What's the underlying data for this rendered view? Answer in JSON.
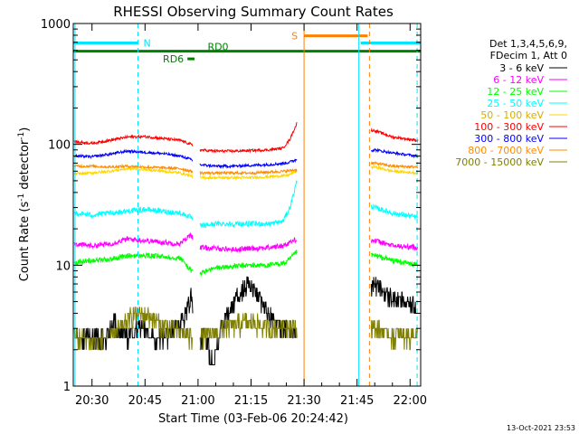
{
  "chart_data": {
    "type": "line",
    "title": "RHESSI Observing Summary Count Rates",
    "xlabel": "Start Time (03-Feb-06 20:24:42)",
    "ylabel": "Count Rate (s",
    "ylabel_sup": "-1",
    "ylabel_mid": " detector",
    "ylabel_sup2": "-1",
    "ylabel_end": ")",
    "x_unit": "minutes of day",
    "xlim": [
      1224.7,
      1323
    ],
    "ylim": [
      1,
      1000
    ],
    "y_scale": "log",
    "x_ticks": [
      {
        "value": 1230,
        "label": "20:30"
      },
      {
        "value": 1245,
        "label": "20:45"
      },
      {
        "value": 1260,
        "label": "21:00"
      },
      {
        "value": 1275,
        "label": "21:15"
      },
      {
        "value": 1290,
        "label": "21:30"
      },
      {
        "value": 1305,
        "label": "21:45"
      },
      {
        "value": 1320,
        "label": "22:00"
      }
    ],
    "y_ticks": [
      {
        "value": 1,
        "label": "1"
      },
      {
        "value": 10,
        "label": "10"
      },
      {
        "value": 100,
        "label": "100"
      },
      {
        "value": 1000,
        "label": "1000"
      }
    ],
    "legend_header": [
      "Det 1,3,4,5,6,9,",
      "FDecim 1, Att 0"
    ],
    "legend_position": "right",
    "gaps": [
      [
        1258.5,
        1260.5
      ],
      [
        1288,
        1309
      ]
    ],
    "series": [
      {
        "name": "3 - 6 keV",
        "color": "#000000",
        "points": [
          [
            1225,
            2.5
          ],
          [
            1234,
            2.5
          ],
          [
            1236,
            3.4
          ],
          [
            1240,
            2.6
          ],
          [
            1244,
            3.2
          ],
          [
            1248,
            2.3
          ],
          [
            1252,
            2.8
          ],
          [
            1256,
            3.5
          ],
          [
            1258,
            5.5
          ],
          [
            1260,
            2.0
          ],
          [
            1262,
            3.0
          ],
          [
            1264,
            1.5
          ],
          [
            1267,
            3.2
          ],
          [
            1271,
            5.5
          ],
          [
            1274,
            7.0
          ],
          [
            1277,
            5.5
          ],
          [
            1280,
            4.0
          ],
          [
            1284,
            3.0
          ],
          [
            1288,
            3.0
          ],
          [
            1310,
            7.0
          ],
          [
            1314,
            5.5
          ],
          [
            1318,
            5.0
          ],
          [
            1322,
            4.5
          ]
        ]
      },
      {
        "name": "6 - 12 keV",
        "color": "#ff00ff",
        "points": [
          [
            1225,
            15
          ],
          [
            1230,
            14.5
          ],
          [
            1235,
            15
          ],
          [
            1240,
            16.5
          ],
          [
            1245,
            16
          ],
          [
            1250,
            15.5
          ],
          [
            1255,
            15
          ],
          [
            1258,
            18
          ],
          [
            1260,
            14
          ],
          [
            1265,
            13.8
          ],
          [
            1270,
            13.5
          ],
          [
            1275,
            13.8
          ],
          [
            1280,
            14
          ],
          [
            1284,
            14.5
          ],
          [
            1288,
            16.5
          ],
          [
            1310,
            16
          ],
          [
            1315,
            14.5
          ],
          [
            1322,
            14
          ]
        ]
      },
      {
        "name": "12 - 25 keV",
        "color": "#00ff00",
        "points": [
          [
            1225,
            10.5
          ],
          [
            1230,
            11
          ],
          [
            1235,
            11.2
          ],
          [
            1240,
            12
          ],
          [
            1245,
            12
          ],
          [
            1250,
            11.8
          ],
          [
            1255,
            11.5
          ],
          [
            1258,
            9.0
          ],
          [
            1260,
            8.5
          ],
          [
            1265,
            9.5
          ],
          [
            1270,
            9.8
          ],
          [
            1275,
            10
          ],
          [
            1280,
            10
          ],
          [
            1285,
            10.5
          ],
          [
            1288,
            13
          ],
          [
            1310,
            12
          ],
          [
            1315,
            11
          ],
          [
            1322,
            10
          ]
        ]
      },
      {
        "name": "25 - 50 keV",
        "color": "#00ffff",
        "points": [
          [
            1225,
            27
          ],
          [
            1230,
            26
          ],
          [
            1235,
            27
          ],
          [
            1240,
            28
          ],
          [
            1245,
            29
          ],
          [
            1250,
            28
          ],
          [
            1255,
            27
          ],
          [
            1258,
            25
          ],
          [
            1260,
            21
          ],
          [
            1265,
            22
          ],
          [
            1270,
            22
          ],
          [
            1275,
            22
          ],
          [
            1280,
            22
          ],
          [
            1284,
            23
          ],
          [
            1286,
            30
          ],
          [
            1288,
            50
          ],
          [
            1310,
            30
          ],
          [
            1315,
            27
          ],
          [
            1322,
            25
          ]
        ]
      },
      {
        "name": "50 - 100 keV",
        "color": "#ffd700",
        "points": [
          [
            1225,
            57
          ],
          [
            1230,
            58
          ],
          [
            1235,
            60
          ],
          [
            1240,
            63
          ],
          [
            1245,
            62
          ],
          [
            1250,
            60
          ],
          [
            1255,
            58
          ],
          [
            1258,
            55
          ],
          [
            1260,
            53
          ],
          [
            1265,
            53
          ],
          [
            1270,
            53
          ],
          [
            1275,
            53
          ],
          [
            1280,
            54
          ],
          [
            1285,
            55
          ],
          [
            1288,
            60
          ],
          [
            1310,
            65
          ],
          [
            1315,
            60
          ],
          [
            1322,
            58
          ]
        ]
      },
      {
        "name": "100 - 300 keV",
        "color": "#ff0000",
        "points": [
          [
            1225,
            105
          ],
          [
            1230,
            102
          ],
          [
            1235,
            108
          ],
          [
            1240,
            115
          ],
          [
            1245,
            116
          ],
          [
            1250,
            112
          ],
          [
            1255,
            108
          ],
          [
            1258,
            100
          ],
          [
            1260,
            90
          ],
          [
            1265,
            88
          ],
          [
            1270,
            88
          ],
          [
            1275,
            89
          ],
          [
            1280,
            90
          ],
          [
            1284,
            93
          ],
          [
            1286,
            110
          ],
          [
            1288,
            150
          ],
          [
            1310,
            130
          ],
          [
            1315,
            115
          ],
          [
            1322,
            108
          ]
        ]
      },
      {
        "name": "300 - 800 keV",
        "color": "#0000ff",
        "points": [
          [
            1225,
            80
          ],
          [
            1230,
            79
          ],
          [
            1235,
            83
          ],
          [
            1240,
            88
          ],
          [
            1245,
            86
          ],
          [
            1250,
            84
          ],
          [
            1255,
            80
          ],
          [
            1258,
            75
          ],
          [
            1260,
            68
          ],
          [
            1265,
            66
          ],
          [
            1270,
            66
          ],
          [
            1275,
            67
          ],
          [
            1280,
            68
          ],
          [
            1285,
            70
          ],
          [
            1288,
            75
          ],
          [
            1310,
            90
          ],
          [
            1315,
            85
          ],
          [
            1322,
            80
          ]
        ]
      },
      {
        "name": "800 - 7000 keV",
        "color": "#ff8c00",
        "points": [
          [
            1225,
            66
          ],
          [
            1230,
            66
          ],
          [
            1235,
            65
          ],
          [
            1240,
            66
          ],
          [
            1245,
            65
          ],
          [
            1250,
            64
          ],
          [
            1255,
            63
          ],
          [
            1258,
            60
          ],
          [
            1260,
            58
          ],
          [
            1265,
            58
          ],
          [
            1270,
            58
          ],
          [
            1275,
            58
          ],
          [
            1280,
            59
          ],
          [
            1285,
            60
          ],
          [
            1288,
            62
          ],
          [
            1310,
            70
          ],
          [
            1315,
            66
          ],
          [
            1322,
            65
          ]
        ]
      },
      {
        "name": "7000 - 15000 keV",
        "color": "#808000",
        "points": [
          [
            1225,
            2.5
          ],
          [
            1232,
            2.4
          ],
          [
            1238,
            3.0
          ],
          [
            1242,
            4.0
          ],
          [
            1246,
            3.8
          ],
          [
            1250,
            3.2
          ],
          [
            1255,
            2.8
          ],
          [
            1258,
            2.5
          ],
          [
            1260,
            2.5
          ],
          [
            1265,
            2.8
          ],
          [
            1270,
            3.2
          ],
          [
            1275,
            3.4
          ],
          [
            1280,
            3.0
          ],
          [
            1285,
            3.2
          ],
          [
            1288,
            3.0
          ],
          [
            1310,
            3.0
          ],
          [
            1315,
            2.6
          ],
          [
            1322,
            2.7
          ]
        ]
      }
    ],
    "annotations": [
      {
        "type": "bar",
        "label": "N",
        "color": "#00e5ff",
        "x_start": 1224.7,
        "x_end": 1243,
        "y": 690
      },
      {
        "type": "bar",
        "label": "",
        "color": "#00e5ff",
        "x_start": 1306,
        "x_end": 1323,
        "y": 690
      },
      {
        "type": "bar",
        "label": "S",
        "color": "#ff8000",
        "x_start": 1290,
        "x_end": 1308,
        "y": 790
      },
      {
        "type": "bar",
        "label": "RD0",
        "color": "#008000",
        "x_start": 1224.7,
        "x_end": 1323,
        "y": 590
      },
      {
        "type": "bar",
        "label": "RD6",
        "color": "#008000",
        "x_start": 1257,
        "x_end": 1259,
        "y": 510
      },
      {
        "type": "vline",
        "color": "#00e5ff",
        "x": 1225.2,
        "style": "solid"
      },
      {
        "type": "vline",
        "color": "#00e5ff",
        "x": 1243,
        "style": "dashed"
      },
      {
        "type": "vline",
        "color": "#00e5ff",
        "x": 1305.5,
        "style": "solid"
      },
      {
        "type": "vline",
        "color": "#00e5ff",
        "x": 1322,
        "style": "dashed"
      },
      {
        "type": "vline",
        "color": "#ff8000",
        "x": 1290,
        "style": "solid"
      },
      {
        "type": "vline",
        "color": "#ff8000",
        "x": 1308.5,
        "style": "dashed"
      }
    ],
    "timestamp": "13-Oct-2021 23:53"
  }
}
